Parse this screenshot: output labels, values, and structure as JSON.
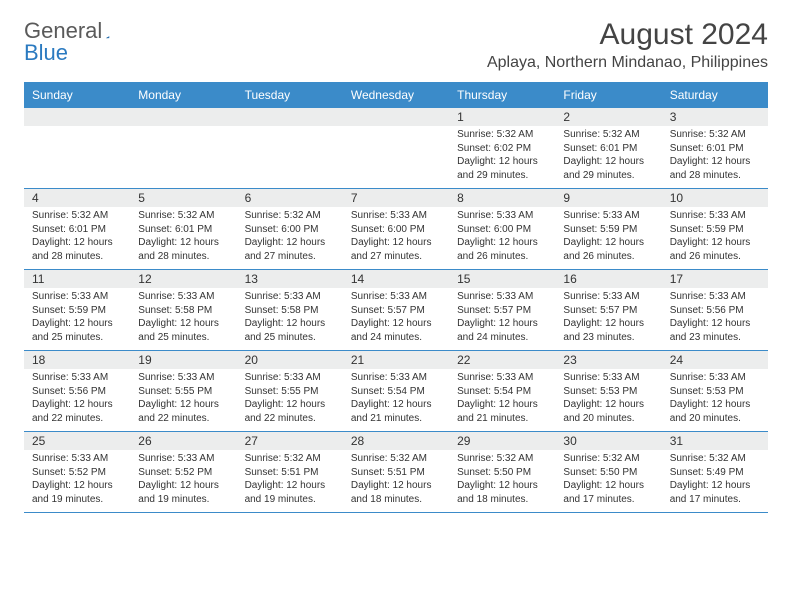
{
  "logo": {
    "text1": "General",
    "text2": "Blue"
  },
  "title": "August 2024",
  "location": "Aplaya, Northern Mindanao, Philippines",
  "day_headers": [
    "Sunday",
    "Monday",
    "Tuesday",
    "Wednesday",
    "Thursday",
    "Friday",
    "Saturday"
  ],
  "colors": {
    "header_bg": "#3b8bc9",
    "header_text": "#ffffff",
    "daynum_bg": "#eceded",
    "border": "#3b8bc9",
    "logo_blue": "#2b7ac0",
    "text": "#333333"
  },
  "label_prefixes": {
    "sunrise": "Sunrise: ",
    "sunset": "Sunset: ",
    "daylight": "Daylight: "
  },
  "weeks": [
    [
      {
        "empty": true
      },
      {
        "empty": true
      },
      {
        "empty": true
      },
      {
        "empty": true
      },
      {
        "num": "1",
        "sunrise": "5:32 AM",
        "sunset": "6:02 PM",
        "daylight": "12 hours and 29 minutes."
      },
      {
        "num": "2",
        "sunrise": "5:32 AM",
        "sunset": "6:01 PM",
        "daylight": "12 hours and 29 minutes."
      },
      {
        "num": "3",
        "sunrise": "5:32 AM",
        "sunset": "6:01 PM",
        "daylight": "12 hours and 28 minutes."
      }
    ],
    [
      {
        "num": "4",
        "sunrise": "5:32 AM",
        "sunset": "6:01 PM",
        "daylight": "12 hours and 28 minutes."
      },
      {
        "num": "5",
        "sunrise": "5:32 AM",
        "sunset": "6:01 PM",
        "daylight": "12 hours and 28 minutes."
      },
      {
        "num": "6",
        "sunrise": "5:32 AM",
        "sunset": "6:00 PM",
        "daylight": "12 hours and 27 minutes."
      },
      {
        "num": "7",
        "sunrise": "5:33 AM",
        "sunset": "6:00 PM",
        "daylight": "12 hours and 27 minutes."
      },
      {
        "num": "8",
        "sunrise": "5:33 AM",
        "sunset": "6:00 PM",
        "daylight": "12 hours and 26 minutes."
      },
      {
        "num": "9",
        "sunrise": "5:33 AM",
        "sunset": "5:59 PM",
        "daylight": "12 hours and 26 minutes."
      },
      {
        "num": "10",
        "sunrise": "5:33 AM",
        "sunset": "5:59 PM",
        "daylight": "12 hours and 26 minutes."
      }
    ],
    [
      {
        "num": "11",
        "sunrise": "5:33 AM",
        "sunset": "5:59 PM",
        "daylight": "12 hours and 25 minutes."
      },
      {
        "num": "12",
        "sunrise": "5:33 AM",
        "sunset": "5:58 PM",
        "daylight": "12 hours and 25 minutes."
      },
      {
        "num": "13",
        "sunrise": "5:33 AM",
        "sunset": "5:58 PM",
        "daylight": "12 hours and 25 minutes."
      },
      {
        "num": "14",
        "sunrise": "5:33 AM",
        "sunset": "5:57 PM",
        "daylight": "12 hours and 24 minutes."
      },
      {
        "num": "15",
        "sunrise": "5:33 AM",
        "sunset": "5:57 PM",
        "daylight": "12 hours and 24 minutes."
      },
      {
        "num": "16",
        "sunrise": "5:33 AM",
        "sunset": "5:57 PM",
        "daylight": "12 hours and 23 minutes."
      },
      {
        "num": "17",
        "sunrise": "5:33 AM",
        "sunset": "5:56 PM",
        "daylight": "12 hours and 23 minutes."
      }
    ],
    [
      {
        "num": "18",
        "sunrise": "5:33 AM",
        "sunset": "5:56 PM",
        "daylight": "12 hours and 22 minutes."
      },
      {
        "num": "19",
        "sunrise": "5:33 AM",
        "sunset": "5:55 PM",
        "daylight": "12 hours and 22 minutes."
      },
      {
        "num": "20",
        "sunrise": "5:33 AM",
        "sunset": "5:55 PM",
        "daylight": "12 hours and 22 minutes."
      },
      {
        "num": "21",
        "sunrise": "5:33 AM",
        "sunset": "5:54 PM",
        "daylight": "12 hours and 21 minutes."
      },
      {
        "num": "22",
        "sunrise": "5:33 AM",
        "sunset": "5:54 PM",
        "daylight": "12 hours and 21 minutes."
      },
      {
        "num": "23",
        "sunrise": "5:33 AM",
        "sunset": "5:53 PM",
        "daylight": "12 hours and 20 minutes."
      },
      {
        "num": "24",
        "sunrise": "5:33 AM",
        "sunset": "5:53 PM",
        "daylight": "12 hours and 20 minutes."
      }
    ],
    [
      {
        "num": "25",
        "sunrise": "5:33 AM",
        "sunset": "5:52 PM",
        "daylight": "12 hours and 19 minutes."
      },
      {
        "num": "26",
        "sunrise": "5:33 AM",
        "sunset": "5:52 PM",
        "daylight": "12 hours and 19 minutes."
      },
      {
        "num": "27",
        "sunrise": "5:32 AM",
        "sunset": "5:51 PM",
        "daylight": "12 hours and 19 minutes."
      },
      {
        "num": "28",
        "sunrise": "5:32 AM",
        "sunset": "5:51 PM",
        "daylight": "12 hours and 18 minutes."
      },
      {
        "num": "29",
        "sunrise": "5:32 AM",
        "sunset": "5:50 PM",
        "daylight": "12 hours and 18 minutes."
      },
      {
        "num": "30",
        "sunrise": "5:32 AM",
        "sunset": "5:50 PM",
        "daylight": "12 hours and 17 minutes."
      },
      {
        "num": "31",
        "sunrise": "5:32 AM",
        "sunset": "5:49 PM",
        "daylight": "12 hours and 17 minutes."
      }
    ]
  ]
}
